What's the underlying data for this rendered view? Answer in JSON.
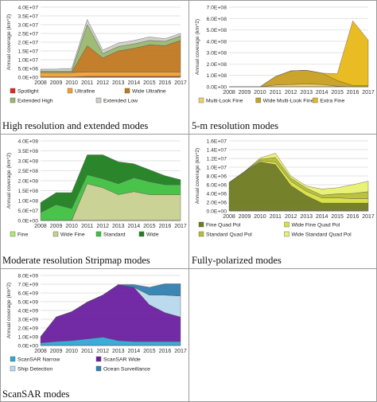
{
  "colors": {
    "spotlight": "#e8261c",
    "ultrafine": "#f0a030",
    "wide_ultrafine": "#c07820",
    "extended_high": "#9ab870",
    "extended_low": "#d0d0c8",
    "multilook_fine": "#f0d060",
    "wide_multilook_fine": "#c8a020",
    "extra_fine": "#e8b818",
    "fine_strip": "#b0e870",
    "wide_fine_strip": "#c8d090",
    "standard_strip": "#40c040",
    "wide_strip": "#208020",
    "fine_quad": "#6e7a20",
    "wide_fine_quad": "#d8e040",
    "standard_quad": "#b8c030",
    "wide_standard_quad": "#e8f070",
    "scansar_narrow": "#30a8d8",
    "scansar_wide": "#6a1fa0",
    "ship_detection": "#b8d8ec",
    "ocean_surveillance": "#3080b0"
  },
  "captions": {
    "p1": "High resolution and extended modes",
    "p2": "5-m resolution modes",
    "p3": "Moderate resolution Stripmap modes",
    "p4": "Fully-polarized modes",
    "p5": "ScanSAR modes"
  },
  "chart_data": [
    {
      "type": "area",
      "x": [
        "2008",
        "2009",
        "2010",
        "2011",
        "2012",
        "2013",
        "2014",
        "2015",
        "2016",
        "2017"
      ],
      "ylabel": "Annual coverage (km^2)",
      "yticks": [
        "0.0E+00",
        "5.0E+06",
        "1.0E+07",
        "1.5E+07",
        "2.0E+07",
        "2.5E+07",
        "3.0E+07",
        "3.5E+07",
        "4.0E+07"
      ],
      "ylim": [
        0,
        40000000
      ],
      "series": [
        {
          "name": "Spotlight",
          "values": [
            200000,
            200000,
            200000,
            500000,
            500000,
            500000,
            500000,
            500000,
            500000,
            500000
          ]
        },
        {
          "name": "Ultrafine",
          "values": [
            2500000,
            2500000,
            2500000,
            2500000,
            2500000,
            2500000,
            2500000,
            2500000,
            2500000,
            2500000
          ]
        },
        {
          "name": "Wide Ultrafine",
          "values": [
            0,
            0,
            0,
            15000000,
            8000000,
            12000000,
            13500000,
            15500000,
            15000000,
            18000000
          ]
        },
        {
          "name": "Extended High",
          "values": [
            800000,
            800000,
            800000,
            12000000,
            2500000,
            2500000,
            2500000,
            2500000,
            2500000,
            2500000
          ]
        },
        {
          "name": "Extended Low",
          "values": [
            1000000,
            1000000,
            1500000,
            3000000,
            2000000,
            2000000,
            2000000,
            2000000,
            1500000,
            1500000
          ]
        }
      ],
      "legend": "bottom"
    },
    {
      "type": "area",
      "x": [
        "2008",
        "2009",
        "2010",
        "2011",
        "2012",
        "2013",
        "2014",
        "2015",
        "2016",
        "2017"
      ],
      "ylabel": "Annual coverage (km^2)",
      "yticks": [
        "0.0E+00",
        "1.0E+08",
        "2.0E+08",
        "3.0E+08",
        "4.0E+08",
        "5.0E+08",
        "6.0E+08",
        "7.0E+08"
      ],
      "ylim": [
        0,
        700000000
      ],
      "series": [
        {
          "name": "Multi-Look Fine",
          "values": [
            0,
            0,
            0,
            15000000,
            20000000,
            25000000,
            20000000,
            5000000,
            0,
            0
          ]
        },
        {
          "name": "Wide Multi-Look Fine",
          "values": [
            0,
            0,
            0,
            75000000,
            120000000,
            120000000,
            100000000,
            50000000,
            10000000,
            10000000
          ]
        },
        {
          "name": "Extra Fine",
          "values": [
            0,
            0,
            0,
            0,
            0,
            0,
            0,
            60000000,
            570000000,
            400000000
          ]
        }
      ],
      "legend": "bottom"
    },
    {
      "type": "area",
      "x": [
        "2008",
        "2009",
        "2010",
        "2011",
        "2012",
        "2013",
        "2014",
        "2015",
        "2016",
        "2017"
      ],
      "ylabel": "Annual coverage (km^2)",
      "yticks": [
        "0.0E+00",
        "5.0E+07",
        "1.0E+08",
        "1.5E+08",
        "2.0E+08",
        "2.5E+08",
        "3.0E+08",
        "3.5E+08",
        "4.0E+08"
      ],
      "ylim": [
        0,
        400000000
      ],
      "series": [
        {
          "name": "Fine",
          "values": [
            0,
            0,
            0,
            0,
            0,
            0,
            0,
            0,
            0,
            0
          ]
        },
        {
          "name": "Wide Fine",
          "values": [
            0,
            0,
            0,
            185000000,
            165000000,
            130000000,
            145000000,
            130000000,
            130000000,
            130000000
          ]
        },
        {
          "name": "Standard",
          "values": [
            40000000,
            80000000,
            60000000,
            45000000,
            45000000,
            55000000,
            70000000,
            65000000,
            50000000,
            50000000
          ]
        },
        {
          "name": "Wide",
          "values": [
            50000000,
            60000000,
            80000000,
            100000000,
            120000000,
            110000000,
            70000000,
            60000000,
            45000000,
            25000000
          ]
        }
      ],
      "legend": "bottom"
    },
    {
      "type": "area",
      "x": [
        "2008",
        "2009",
        "2010",
        "2011",
        "2012",
        "2013",
        "2014",
        "2015",
        "2016",
        "2017"
      ],
      "ylabel": "Annual coverage (km^2)",
      "yticks": [
        "0.0E+00",
        "2.0E+06",
        "4.0E+06",
        "6.0E+06",
        "8.0E+06",
        "1.0E+07",
        "1.2E+07",
        "1.4E+07",
        "1.6E+07"
      ],
      "ylim": [
        0,
        16000000
      ],
      "series": [
        {
          "name": "Fine Quad Pol",
          "values": [
            6500000,
            9000000,
            11200000,
            10600000,
            5800000,
            3500000,
            1800000,
            1800000,
            1800000,
            1800000
          ]
        },
        {
          "name": "Wide Fine Quad Pol",
          "values": [
            0,
            0,
            300000,
            600000,
            1000000,
            1000000,
            1200000,
            1200000,
            1000000,
            1000000
          ]
        },
        {
          "name": "Standard Quad Pol",
          "values": [
            0,
            0,
            300000,
            1000000,
            700000,
            700000,
            600000,
            900000,
            1200000,
            1600000
          ]
        },
        {
          "name": "Wide Standard Quad Pol",
          "values": [
            0,
            0,
            300000,
            1000000,
            500000,
            500000,
            1400000,
            1400000,
            2000000,
            2400000
          ]
        }
      ],
      "legend": "bottom"
    },
    {
      "type": "area",
      "x": [
        "2008",
        "2009",
        "2010",
        "2011",
        "2012",
        "2013",
        "2014",
        "2015",
        "2016",
        "2017"
      ],
      "ylabel": "Annual coverage (km^2)",
      "yticks": [
        "0.0E+00",
        "1.0E+09",
        "2.0E+09",
        "3.0E+09",
        "4.0E+09",
        "5.0E+09",
        "6.0E+09",
        "7.0E+09",
        "8.0E+09"
      ],
      "ylim": [
        0,
        8000000000
      ],
      "series": [
        {
          "name": "ScanSAR Narrow",
          "values": [
            300000000,
            450000000,
            550000000,
            750000000,
            950000000,
            550000000,
            450000000,
            450000000,
            450000000,
            450000000
          ]
        },
        {
          "name": "ScanSAR Wide",
          "values": [
            700000000,
            2800000000,
            3300000000,
            4200000000,
            4800000000,
            6400000000,
            6200000000,
            4200000000,
            3300000000,
            2800000000
          ]
        },
        {
          "name": "Ship Detection",
          "values": [
            0,
            0,
            0,
            0,
            0,
            0,
            0,
            1100000000,
            2000000000,
            2400000000
          ]
        },
        {
          "name": "Ocean Surveillance",
          "values": [
            0,
            0,
            0,
            0,
            0,
            0,
            300000000,
            900000000,
            1300000000,
            1400000000
          ]
        }
      ],
      "legend": "bottom"
    }
  ]
}
